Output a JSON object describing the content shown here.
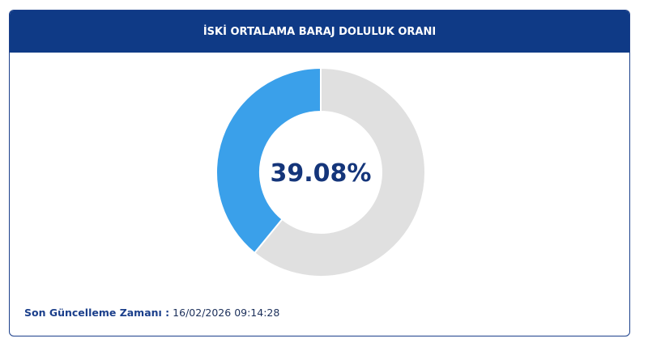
{
  "chart_data": {
    "type": "donut",
    "title": "İSKİ ORTALAMA BARAJ DOLULUK ORANI",
    "values": [
      39.08,
      60.92
    ],
    "value_labels": [
      "39.08%",
      null
    ],
    "colors": [
      "#3aa0ea",
      "#e0e0e0"
    ],
    "footer_label": "Son Güncelleme Zamanı :",
    "footer_value": "16/02/2026 09:14:28"
  }
}
